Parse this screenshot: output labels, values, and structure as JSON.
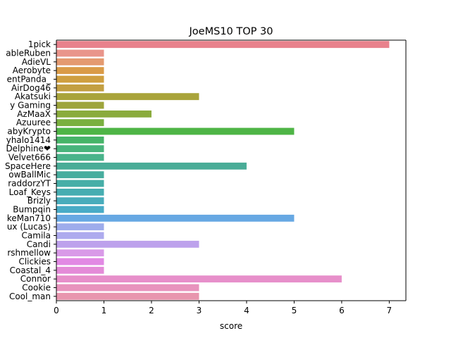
{
  "chart_data": {
    "type": "bar",
    "orientation": "horizontal",
    "title": "JoeMS10 TOP 30",
    "xlabel": "score",
    "ylabel": "",
    "xlim": [
      0,
      7.35
    ],
    "xticks": [
      "0",
      "1",
      "2",
      "3",
      "4",
      "5",
      "6",
      "7"
    ],
    "grid": false,
    "categories": [
      "1pick",
      "ableRuben",
      "AdieVL",
      "Aerobyte",
      "entPanda_",
      "AirDog46",
      "Akatsuki",
      "y Gaming",
      "AzMaaX",
      "Azuuree",
      "abyKrypto",
      "yhalo1414",
      "Delphine❤",
      "Velvet666",
      "SpaceHere",
      "owBallMic",
      "raddorzYT",
      "Loaf_Keys",
      "Brizly",
      "Bumpqin",
      "keMan710",
      "ux (Lucas)",
      "Camila",
      "Candi",
      "rshmellow",
      "Clickies",
      "Coastal_4",
      "Connor",
      "Cookie",
      "Cool_man"
    ],
    "values": [
      7,
      1,
      1,
      1,
      1,
      1,
      3,
      1,
      2,
      1,
      5,
      1,
      1,
      1,
      4,
      1,
      1,
      1,
      1,
      1,
      5,
      1,
      1,
      3,
      1,
      1,
      1,
      6,
      3,
      3
    ],
    "colors": [
      "#e8818c",
      "#e9958b",
      "#e49a70",
      "#da9b47",
      "#cf9f40",
      "#c39f42",
      "#a9a43b",
      "#9ea53c",
      "#8aab3c",
      "#7ab03f",
      "#4eb546",
      "#46b468",
      "#48b47c",
      "#49b38a",
      "#49ac97",
      "#47ad9e",
      "#46aea7",
      "#46adb1",
      "#48acbb",
      "#48abc6",
      "#67a8e3",
      "#9eacec",
      "#adaaee",
      "#bda1ec",
      "#d99ae8",
      "#e289e4",
      "#e48bd8",
      "#e78fca",
      "#e893bd",
      "#e896ae"
    ]
  }
}
